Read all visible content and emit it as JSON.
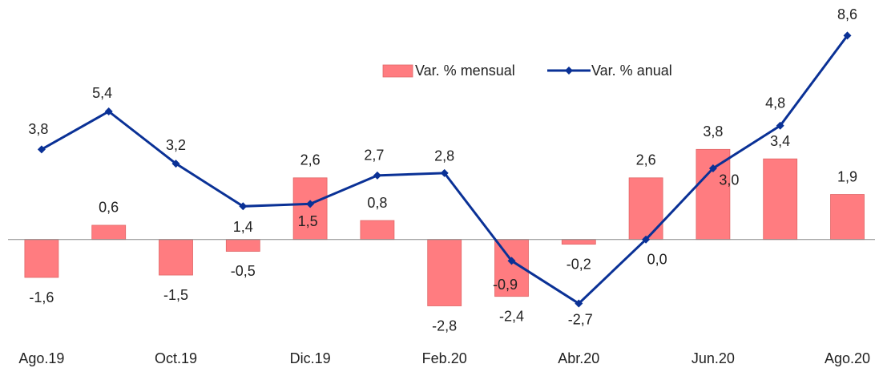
{
  "chart_data": {
    "type": "bar_line",
    "categories": [
      "Ago.19",
      null,
      "Oct.19",
      null,
      "Dic.19",
      null,
      "Feb.20",
      null,
      "Abr.20",
      null,
      "Jun.20",
      null,
      "Ago.20"
    ],
    "series": [
      {
        "name": "Var. % mensual",
        "type": "bar",
        "color": "#ff7c80",
        "values": [
          -1.6,
          0.6,
          -1.5,
          -0.5,
          2.6,
          0.8,
          -2.8,
          -2.4,
          -0.2,
          2.6,
          3.8,
          3.4,
          1.9
        ],
        "value_labels": [
          "-1,6",
          "0,6",
          "-1,5",
          "-0,5",
          "2,6",
          "0,8",
          "-2,8",
          "-2,4",
          "-0,2",
          "2,6",
          "3,8",
          "3,4",
          "1,9"
        ]
      },
      {
        "name": "Var. % anual",
        "type": "line",
        "color": "#0a3196",
        "values": [
          3.8,
          5.4,
          3.2,
          1.4,
          1.5,
          2.7,
          2.8,
          -0.9,
          -2.7,
          0.0,
          3.0,
          4.8,
          8.6
        ],
        "value_labels": [
          "3,8",
          "5,4",
          "3,2",
          "1,4",
          "1,5",
          "2,7",
          "2,8",
          "-0,9",
          "-2,7",
          "0,0",
          "3,0",
          "4,8",
          "8,6"
        ]
      }
    ],
    "ylim": [
      -4,
      10.1
    ],
    "legend": "top"
  }
}
